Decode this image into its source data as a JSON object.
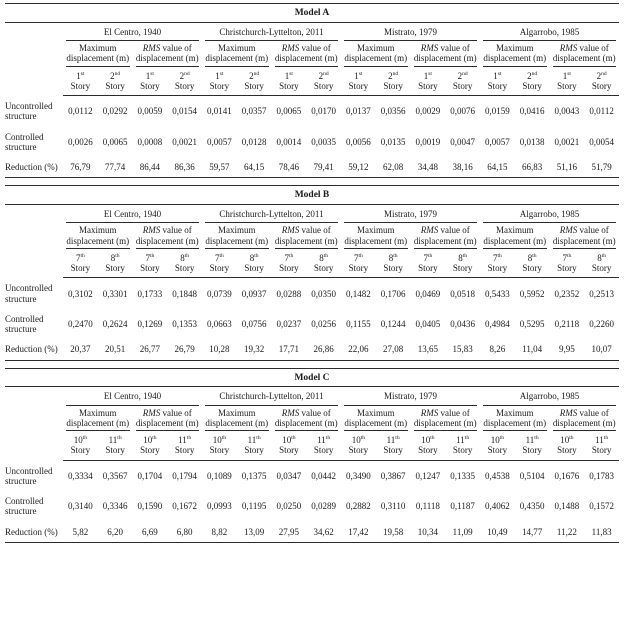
{
  "story_word": "Story",
  "tables": [
    {
      "title": "Model A",
      "earthquakes": [
        "El Centro, 1940",
        "Christchurch-Lyttelton, 2011",
        "Mistrato, 1979",
        "Algarrobo, 1985"
      ],
      "measures": [
        {
          "italic": "",
          "text": "Maximum displacement (m)"
        },
        {
          "italic": "RMS",
          "text": " value of displacement (m)"
        }
      ],
      "stories": [
        {
          "n": "1",
          "s": "st"
        },
        {
          "n": "2",
          "s": "nd"
        }
      ],
      "rows": [
        {
          "label": "Uncontrolled structure",
          "values": [
            "0,0112",
            "0,0292",
            "0,0059",
            "0,0154",
            "0,0141",
            "0,0357",
            "0,0065",
            "0,0170",
            "0,0137",
            "0,0356",
            "0,0029",
            "0,0076",
            "0,0159",
            "0,0416",
            "0,0043",
            "0,0112"
          ]
        },
        {
          "label": "Controlled structure",
          "values": [
            "0,0026",
            "0,0065",
            "0,0008",
            "0,0021",
            "0,0057",
            "0,0128",
            "0,0014",
            "0,0035",
            "0,0056",
            "0,0135",
            "0,0019",
            "0,0047",
            "0,0057",
            "0,0138",
            "0,0021",
            "0,0054"
          ]
        },
        {
          "label": "Reduction (%)",
          "values": [
            "76,79",
            "77,74",
            "86,44",
            "86,36",
            "59,57",
            "64,15",
            "78,46",
            "79,41",
            "59,12",
            "62,08",
            "34,48",
            "38,16",
            "64,15",
            "66,83",
            "51,16",
            "51,79"
          ]
        }
      ]
    },
    {
      "title": "Model B",
      "earthquakes": [
        "El Centro, 1940",
        "Christchurch-Lyttelton, 2011",
        "Mistrato, 1979",
        "Algarrobo, 1985"
      ],
      "measures": [
        {
          "italic": "",
          "text": "Maximum displacement (m)"
        },
        {
          "italic": "RMS",
          "text": " value of displacement (m)"
        }
      ],
      "stories": [
        {
          "n": "7",
          "s": "th"
        },
        {
          "n": "8",
          "s": "th"
        }
      ],
      "rows": [
        {
          "label": "Uncontrolled structure",
          "values": [
            "0,3102",
            "0,3301",
            "0,1733",
            "0,1848",
            "0,0739",
            "0,0937",
            "0,0288",
            "0,0350",
            "0,1482",
            "0,1706",
            "0,0469",
            "0,0518",
            "0,5433",
            "0,5952",
            "0,2352",
            "0,2513"
          ]
        },
        {
          "label": "Controlled structure",
          "values": [
            "0,2470",
            "0,2624",
            "0,1269",
            "0,1353",
            "0,0663",
            "0,0756",
            "0,0237",
            "0,0256",
            "0,1155",
            "0,1244",
            "0,0405",
            "0,0436",
            "0,4984",
            "0,5295",
            "0,2118",
            "0,2260"
          ]
        },
        {
          "label": "Reduction (%)",
          "values": [
            "20,37",
            "20,51",
            "26,77",
            "26,79",
            "10,28",
            "19,32",
            "17,71",
            "26,86",
            "22,06",
            "27,08",
            "13,65",
            "15,83",
            "8,26",
            "11,04",
            "9,95",
            "10,07"
          ]
        }
      ]
    },
    {
      "title": "Model C",
      "earthquakes": [
        "El Centro, 1940",
        "Christchurch-Lyttelton, 2011",
        "Mistrato, 1979",
        "Algarrobo, 1985"
      ],
      "measures": [
        {
          "italic": "",
          "text": "Maximum displacement (m)"
        },
        {
          "italic": "RMS",
          "text": " value of displacement (m)"
        }
      ],
      "stories": [
        {
          "n": "10",
          "s": "th"
        },
        {
          "n": "11",
          "s": "th"
        }
      ],
      "rows": [
        {
          "label": "Uncontrolled structure",
          "values": [
            "0,3334",
            "0,3567",
            "0,1704",
            "0,1794",
            "0,1089",
            "0,1375",
            "0,0347",
            "0,0442",
            "0,3490",
            "0,3867",
            "0,1247",
            "0,1335",
            "0,4538",
            "0,5104",
            "0,1676",
            "0,1783"
          ]
        },
        {
          "label": "Controlled structure",
          "values": [
            "0,3140",
            "0,3346",
            "0,1590",
            "0,1672",
            "0,0993",
            "0,1195",
            "0,0250",
            "0,0289",
            "0,2882",
            "0,3110",
            "0,1118",
            "0,1187",
            "0,4062",
            "0,4350",
            "0,1488",
            "0,1572"
          ]
        },
        {
          "label": "Reduction (%)",
          "values": [
            "5,82",
            "6,20",
            "6,69",
            "6,80",
            "8,82",
            "13,09",
            "27,95",
            "34,62",
            "17,42",
            "19,58",
            "10,34",
            "11,09",
            "10,49",
            "14,77",
            "11,22",
            "11,83"
          ]
        }
      ]
    }
  ]
}
